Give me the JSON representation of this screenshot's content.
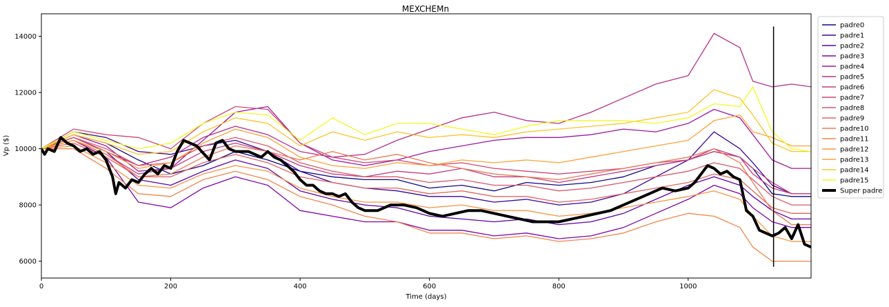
{
  "chart_data": {
    "type": "line",
    "title": "MEXCHEMn",
    "xlabel": "Time (days)",
    "ylabel": "Vp ($)",
    "xlim": [
      0,
      1190
    ],
    "ylim": [
      5400,
      14800
    ],
    "xticks": [
      0,
      200,
      400,
      600,
      800,
      1000
    ],
    "yticks": [
      6000,
      8000,
      10000,
      12000,
      14000
    ],
    "grid": false,
    "legend_position": "outside-top-right",
    "vline": {
      "x": 1132,
      "ymin": 5800,
      "ymax": 14350,
      "color": "#000000"
    },
    "series": [
      {
        "name": "padre0",
        "color": "#0d0887",
        "x": [
          0,
          50,
          100,
          150,
          200,
          250,
          300,
          350,
          400,
          450,
          500,
          550,
          600,
          650,
          700,
          750,
          800,
          850,
          900,
          950,
          1000,
          1040,
          1080,
          1100,
          1130,
          1160,
          1190
        ],
        "y": [
          10000,
          10500,
          10200,
          9600,
          9100,
          9400,
          9900,
          9600,
          9200,
          9000,
          8900,
          8900,
          8600,
          8700,
          8500,
          8800,
          8700,
          8800,
          9000,
          9400,
          9600,
          9900,
          9700,
          9300,
          8400,
          8300,
          8300
        ]
      },
      {
        "name": "padre1",
        "color": "#3a049a",
        "x": [
          0,
          50,
          100,
          150,
          200,
          250,
          300,
          350,
          400,
          450,
          500,
          550,
          600,
          650,
          700,
          750,
          800,
          850,
          900,
          950,
          1000,
          1040,
          1080,
          1100,
          1130,
          1160,
          1190
        ],
        "y": [
          10000,
          10600,
          10400,
          9900,
          9800,
          10100,
          10300,
          9900,
          9200,
          8800,
          8600,
          8500,
          8300,
          8300,
          8100,
          8200,
          8000,
          8100,
          8400,
          9000,
          9600,
          10600,
          10000,
          9500,
          8700,
          8400,
          8400
        ]
      },
      {
        "name": "padre2",
        "color": "#5c01a6",
        "x": [
          0,
          50,
          100,
          150,
          200,
          250,
          300,
          350,
          400,
          450,
          500,
          550,
          600,
          650,
          700,
          750,
          800,
          850,
          900,
          950,
          1000,
          1040,
          1080,
          1100,
          1130,
          1160,
          1190
        ],
        "y": [
          10000,
          10400,
          9900,
          8900,
          8700,
          9200,
          9600,
          9300,
          8500,
          8200,
          8000,
          7900,
          7600,
          7500,
          7400,
          7500,
          7300,
          7400,
          7700,
          8200,
          8700,
          9000,
          8700,
          8300,
          7800,
          7500,
          7500
        ]
      },
      {
        "name": "padre3",
        "color": "#7e03a8",
        "x": [
          0,
          50,
          100,
          150,
          200,
          250,
          300,
          350,
          400,
          450,
          500,
          550,
          600,
          650,
          700,
          750,
          800,
          850,
          900,
          950,
          1000,
          1040,
          1080,
          1100,
          1130,
          1160,
          1190
        ],
        "y": [
          10000,
          10300,
          9700,
          8100,
          7900,
          8600,
          9000,
          8700,
          7800,
          7600,
          7400,
          7400,
          7100,
          7100,
          6900,
          7000,
          6800,
          6900,
          7200,
          7700,
          8200,
          8700,
          8400,
          7900,
          7400,
          7200,
          7200
        ]
      },
      {
        "name": "padre4",
        "color": "#9c179e",
        "x": [
          0,
          50,
          100,
          150,
          200,
          250,
          300,
          350,
          400,
          450,
          500,
          550,
          600,
          650,
          700,
          750,
          800,
          850,
          900,
          950,
          1000,
          1040,
          1080,
          1100,
          1130,
          1160,
          1190
        ],
        "y": [
          10000,
          10500,
          10100,
          9200,
          9300,
          10300,
          11300,
          11500,
          10200,
          9600,
          9400,
          9600,
          9900,
          10100,
          10300,
          10400,
          10400,
          10500,
          10700,
          10600,
          10900,
          11400,
          11100,
          10500,
          9600,
          9300,
          9300
        ]
      },
      {
        "name": "padre5",
        "color": "#b52f8c",
        "x": [
          0,
          50,
          100,
          150,
          200,
          250,
          300,
          350,
          400,
          450,
          500,
          550,
          600,
          650,
          700,
          750,
          800,
          850,
          900,
          950,
          1000,
          1040,
          1080,
          1100,
          1130,
          1160,
          1190
        ],
        "y": [
          10000,
          10400,
          9900,
          9400,
          9700,
          10400,
          10800,
          10500,
          9900,
          9700,
          9800,
          10300,
          10700,
          11100,
          11300,
          11000,
          10900,
          11300,
          11800,
          12300,
          12600,
          14100,
          13600,
          12400,
          12200,
          12300,
          12200
        ]
      },
      {
        "name": "padre6",
        "color": "#c23c81",
        "x": [
          0,
          50,
          100,
          150,
          200,
          250,
          300,
          350,
          400,
          450,
          500,
          550,
          600,
          650,
          700,
          750,
          800,
          850,
          900,
          950,
          1000,
          1040,
          1080,
          1100,
          1130,
          1160,
          1190
        ],
        "y": [
          10000,
          10300,
          9800,
          9100,
          9300,
          9900,
          10200,
          9900,
          9400,
          9100,
          9000,
          9200,
          9100,
          9300,
          9000,
          9000,
          8800,
          9000,
          9200,
          9400,
          9600,
          10000,
          9700,
          9100,
          8600,
          8400,
          8400
        ]
      },
      {
        "name": "padre7",
        "color": "#cc4778",
        "x": [
          0,
          50,
          100,
          150,
          200,
          250,
          300,
          350,
          400,
          450,
          500,
          550,
          600,
          650,
          700,
          750,
          800,
          850,
          900,
          950,
          1000,
          1040,
          1080,
          1100,
          1130,
          1160,
          1190
        ],
        "y": [
          10000,
          10700,
          10500,
          10400,
          10000,
          10900,
          11500,
          11400,
          10200,
          9700,
          9500,
          9600,
          9400,
          9500,
          9300,
          9200,
          9100,
          9200,
          9300,
          9500,
          9600,
          9900,
          9700,
          9300,
          8800,
          8400,
          8400
        ]
      },
      {
        "name": "padre8",
        "color": "#d8576b",
        "x": [
          0,
          50,
          100,
          150,
          200,
          250,
          300,
          350,
          400,
          450,
          500,
          550,
          600,
          650,
          700,
          750,
          800,
          850,
          900,
          950,
          1000,
          1040,
          1080,
          1100,
          1130,
          1160,
          1190
        ],
        "y": [
          10000,
          10400,
          10000,
          9400,
          9500,
          10100,
          10400,
          10100,
          9500,
          9200,
          9000,
          9000,
          8800,
          8900,
          8700,
          8700,
          8500,
          8600,
          8800,
          9000,
          9200,
          9500,
          9300,
          8900,
          8300,
          8000,
          8000
        ]
      },
      {
        "name": "padre9",
        "color": "#e16462",
        "x": [
          0,
          50,
          100,
          150,
          200,
          250,
          300,
          350,
          400,
          450,
          500,
          550,
          600,
          650,
          700,
          750,
          800,
          850,
          900,
          950,
          1000,
          1040,
          1080,
          1100,
          1130,
          1160,
          1190
        ],
        "y": [
          10000,
          10200,
          9700,
          9000,
          9000,
          9500,
          9800,
          9500,
          9000,
          8800,
          8600,
          8600,
          8400,
          8500,
          8300,
          8300,
          8100,
          8200,
          8400,
          8600,
          8800,
          9100,
          8900,
          8500,
          7900,
          7700,
          7700
        ]
      },
      {
        "name": "padre10",
        "color": "#ec7853",
        "x": [
          0,
          50,
          100,
          150,
          200,
          250,
          300,
          350,
          400,
          450,
          500,
          550,
          600,
          650,
          700,
          750,
          800,
          850,
          900,
          950,
          1000,
          1040,
          1080,
          1100,
          1130,
          1160,
          1190
        ],
        "y": [
          10000,
          10300,
          9800,
          9000,
          9100,
          9700,
          10100,
          9900,
          9600,
          9900,
          9600,
          9800,
          9500,
          9300,
          9100,
          9000,
          8900,
          9100,
          9300,
          9500,
          9700,
          10000,
          9500,
          8800,
          7800,
          7300,
          7300
        ]
      },
      {
        "name": "padre11",
        "color": "#f1844b",
        "x": [
          0,
          50,
          100,
          150,
          200,
          250,
          300,
          350,
          400,
          450,
          500,
          550,
          600,
          650,
          700,
          750,
          800,
          850,
          900,
          950,
          1000,
          1040,
          1080,
          1100,
          1130,
          1160,
          1190
        ],
        "y": [
          10000,
          10000,
          9300,
          8400,
          8300,
          8900,
          9200,
          8900,
          8300,
          8000,
          7600,
          7400,
          7000,
          7000,
          6800,
          6900,
          6700,
          6800,
          7000,
          7400,
          7700,
          7600,
          7200,
          6500,
          6000,
          6000,
          6000
        ]
      },
      {
        "name": "padre12",
        "color": "#f89441",
        "x": [
          0,
          50,
          100,
          150,
          200,
          250,
          300,
          350,
          400,
          450,
          500,
          550,
          600,
          650,
          700,
          750,
          800,
          850,
          900,
          950,
          1000,
          1040,
          1080,
          1100,
          1130,
          1160,
          1190
        ],
        "y": [
          10000,
          10100,
          9500,
          8700,
          8600,
          9100,
          9400,
          9200,
          8600,
          8300,
          8100,
          8100,
          7900,
          8000,
          7800,
          7800,
          7600,
          7700,
          7900,
          8100,
          8300,
          8500,
          8200,
          7600,
          6900,
          6700,
          6700
        ]
      },
      {
        "name": "padre13",
        "color": "#fba238",
        "x": [
          0,
          50,
          100,
          150,
          200,
          250,
          300,
          350,
          400,
          450,
          500,
          550,
          600,
          650,
          700,
          750,
          800,
          850,
          900,
          950,
          1000,
          1040,
          1080,
          1100,
          1130,
          1160,
          1190
        ],
        "y": [
          10000,
          10300,
          9900,
          9300,
          9500,
          10200,
          10700,
          10400,
          9700,
          9400,
          9300,
          9500,
          9400,
          9600,
          9500,
          9600,
          9500,
          9700,
          9900,
          10100,
          10300,
          11000,
          11200,
          10600,
          10400,
          10100,
          10100
        ]
      },
      {
        "name": "padre14",
        "color": "#fdc328",
        "x": [
          0,
          50,
          100,
          150,
          200,
          250,
          300,
          350,
          400,
          450,
          500,
          550,
          600,
          650,
          700,
          750,
          800,
          850,
          900,
          950,
          1000,
          1040,
          1080,
          1100,
          1130,
          1160,
          1190
        ],
        "y": [
          10000,
          10500,
          10200,
          9800,
          9900,
          10600,
          11100,
          10900,
          10100,
          10600,
          10300,
          10600,
          10400,
          10500,
          10400,
          10600,
          10700,
          10800,
          10900,
          11100,
          11300,
          12100,
          11800,
          11200,
          10200,
          9900,
          9900
        ]
      },
      {
        "name": "padre15",
        "color": "#f0f921",
        "x": [
          0,
          50,
          100,
          150,
          200,
          250,
          300,
          350,
          400,
          450,
          500,
          550,
          600,
          650,
          700,
          750,
          800,
          850,
          900,
          950,
          1000,
          1040,
          1080,
          1100,
          1130,
          1160,
          1190
        ],
        "y": [
          10000,
          10600,
          10300,
          10000,
          10200,
          10900,
          11300,
          11200,
          10300,
          11100,
          10500,
          10900,
          10900,
          10700,
          10500,
          10800,
          11000,
          11000,
          11000,
          10900,
          11100,
          11600,
          11500,
          12200,
          10600,
          10000,
          9900
        ]
      },
      {
        "name": "Super padre",
        "color": "#000000",
        "width": 4,
        "x": [
          0,
          5,
          10,
          20,
          30,
          40,
          50,
          60,
          70,
          80,
          90,
          100,
          110,
          115,
          120,
          130,
          140,
          150,
          160,
          170,
          180,
          190,
          200,
          210,
          220,
          240,
          260,
          270,
          280,
          290,
          300,
          320,
          340,
          350,
          360,
          370,
          380,
          390,
          400,
          410,
          420,
          430,
          440,
          450,
          460,
          470,
          480,
          490,
          500,
          520,
          540,
          560,
          580,
          600,
          620,
          640,
          660,
          680,
          700,
          720,
          740,
          760,
          780,
          800,
          820,
          840,
          860,
          880,
          900,
          920,
          940,
          960,
          980,
          1000,
          1010,
          1020,
          1030,
          1040,
          1050,
          1060,
          1070,
          1080,
          1090,
          1100,
          1110,
          1120,
          1130,
          1140,
          1150,
          1160,
          1170,
          1180,
          1190
        ],
        "y": [
          10000,
          9800,
          10000,
          9900,
          10400,
          10200,
          10100,
          9900,
          10000,
          9800,
          9900,
          9600,
          9000,
          8400,
          8800,
          8600,
          8900,
          8800,
          9100,
          9300,
          9100,
          9400,
          9300,
          9900,
          10300,
          10100,
          9600,
          10200,
          10300,
          10000,
          9900,
          9900,
          9700,
          9900,
          9700,
          9600,
          9400,
          9200,
          8900,
          8700,
          8700,
          8500,
          8400,
          8400,
          8300,
          8400,
          8100,
          7900,
          7800,
          7800,
          8000,
          8000,
          7900,
          7700,
          7600,
          7700,
          7800,
          7800,
          7700,
          7600,
          7500,
          7400,
          7400,
          7400,
          7500,
          7600,
          7700,
          7800,
          8000,
          8200,
          8400,
          8600,
          8500,
          8600,
          8800,
          9100,
          9400,
          9300,
          9100,
          9200,
          9000,
          8900,
          7800,
          7600,
          7100,
          7000,
          6900,
          7000,
          7200,
          6800,
          7300,
          6600,
          6500
        ]
      }
    ]
  }
}
